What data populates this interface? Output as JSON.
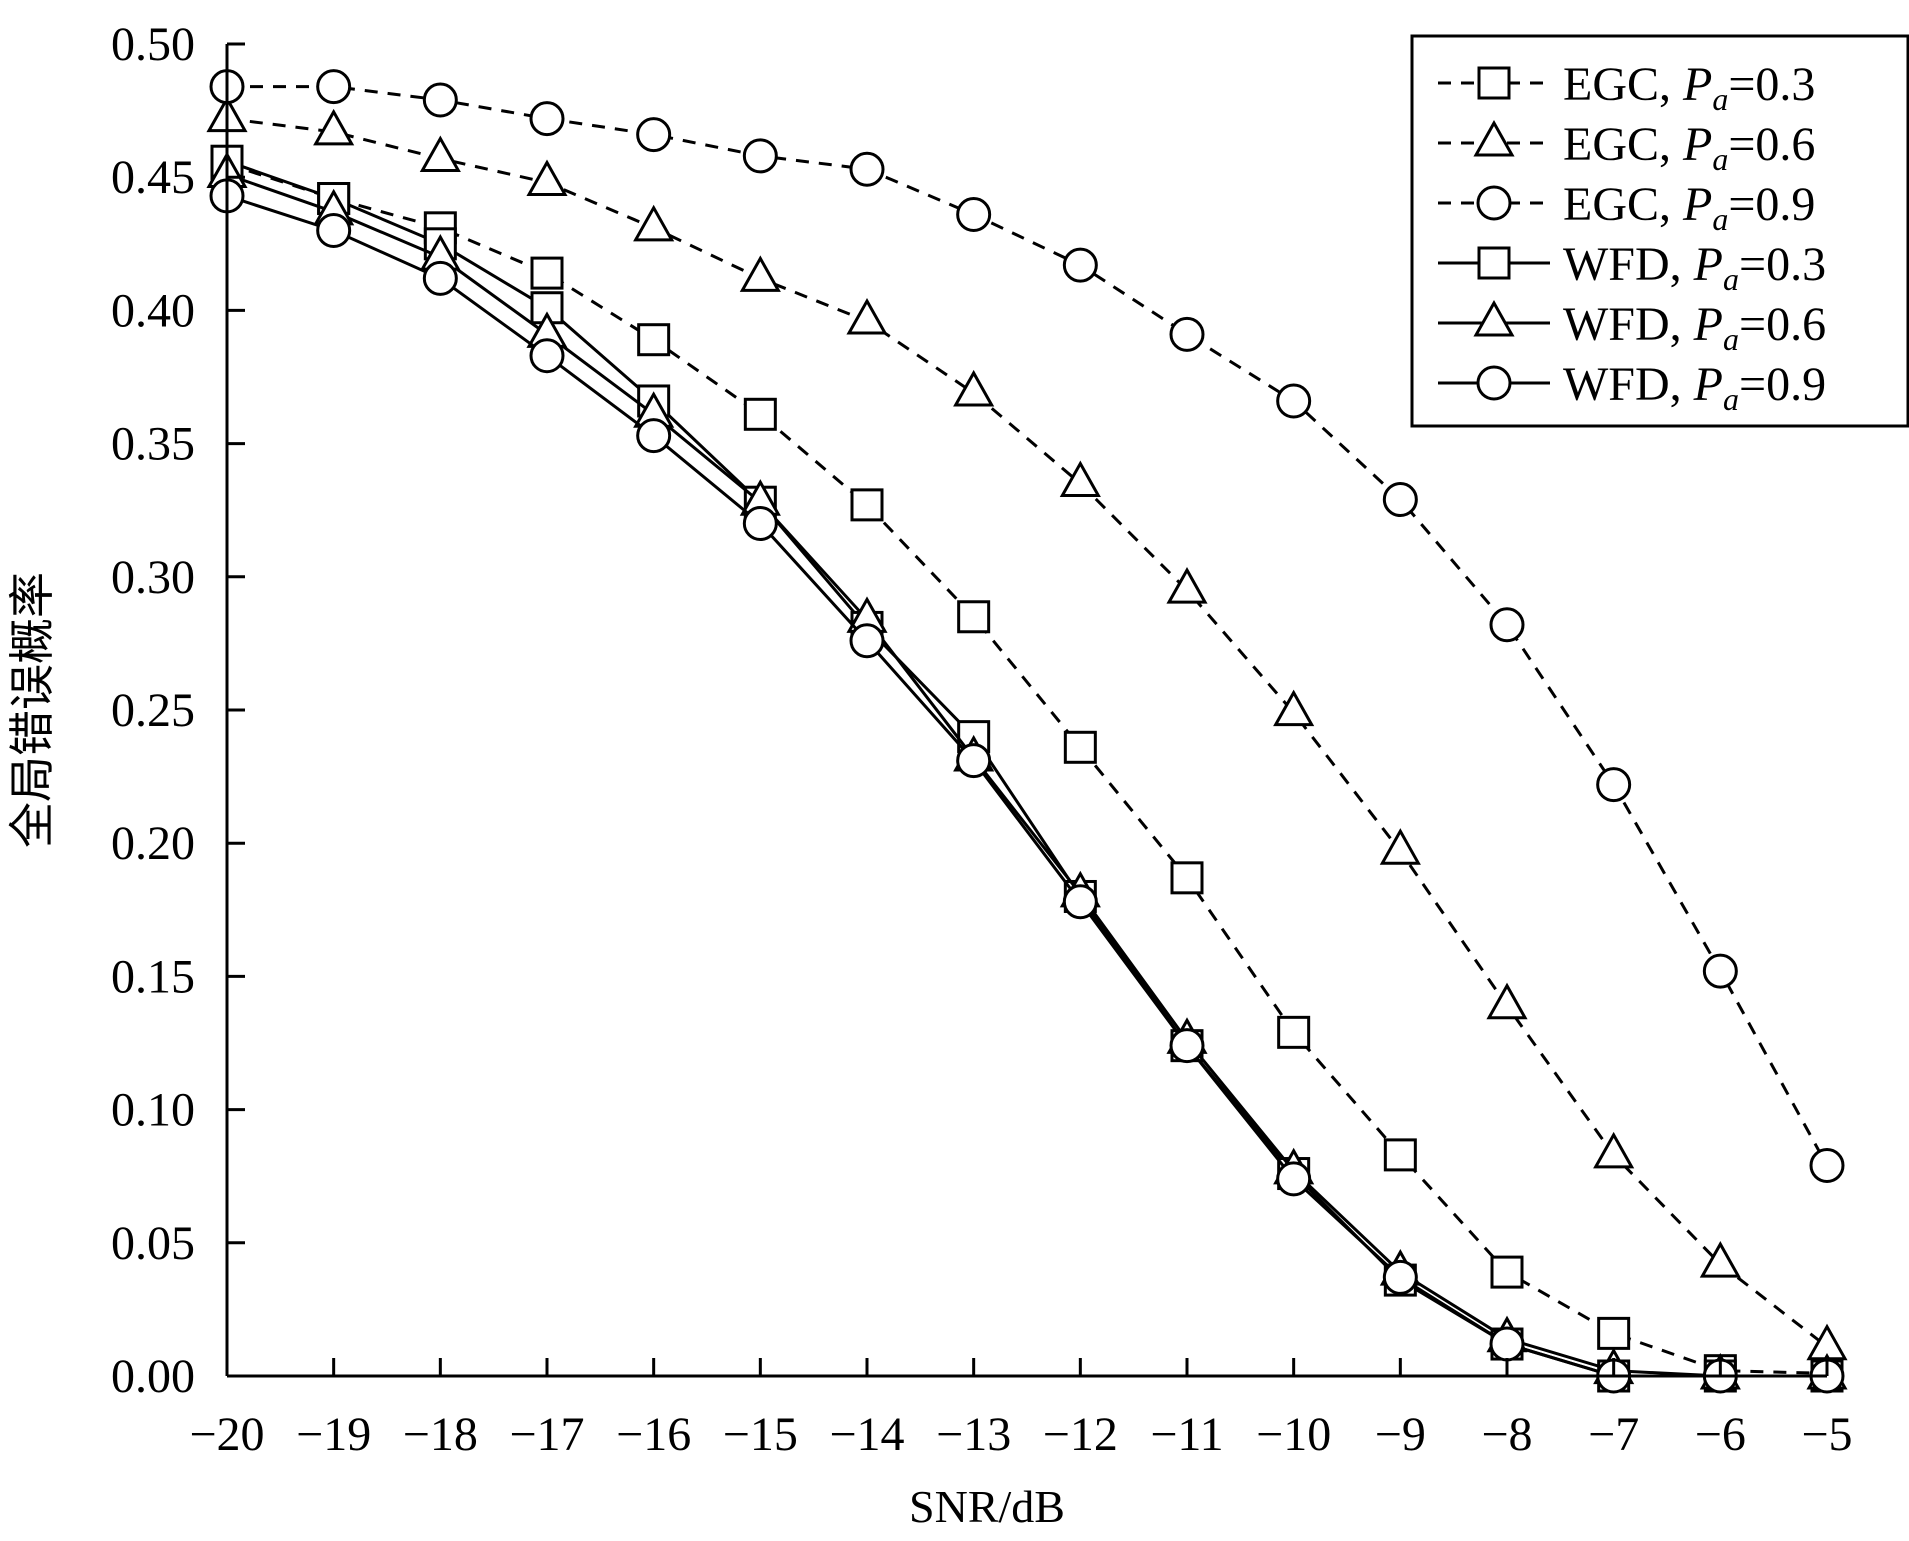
{
  "chart_data": {
    "type": "line",
    "title": "",
    "xlabel": "SNR/dB",
    "ylabel": "全局错误概率",
    "xlim": [
      -20,
      -5
    ],
    "ylim": [
      0,
      0.5
    ],
    "grid": false,
    "legend_position": "top-right",
    "x": [
      -20,
      -19,
      -18,
      -17,
      -16,
      -15,
      -14,
      -13,
      -12,
      -11,
      -10,
      -9,
      -8,
      -7,
      -6,
      -5
    ],
    "x_tick_labels": [
      "−20",
      "−19",
      "−18",
      "−17",
      "−16",
      "−15",
      "−14",
      "−13",
      "−12",
      "−11",
      "−10",
      "−9",
      "−8",
      "−7",
      "−6",
      "−5"
    ],
    "y_ticks": [
      0,
      0.05,
      0.1,
      0.15,
      0.2,
      0.25,
      0.3,
      0.35,
      0.4,
      0.45,
      0.5
    ],
    "y_tick_labels": [
      "0.00",
      "0.05",
      "0.10",
      "0.15",
      "0.20",
      "0.25",
      "0.30",
      "0.35",
      "0.40",
      "0.45",
      "0.50"
    ],
    "series": [
      {
        "name_prefix": "EGC, ",
        "name_sub": "a",
        "name_value": "=0.3",
        "marker": "square",
        "dash": true,
        "values": [
          0.455,
          0.442,
          0.431,
          0.414,
          0.389,
          0.361,
          0.327,
          0.285,
          0.236,
          0.187,
          0.129,
          0.083,
          0.039,
          0.016,
          0.002,
          0.001
        ]
      },
      {
        "name_prefix": "EGC, ",
        "name_sub": "a",
        "name_value": "=0.6",
        "marker": "triangle",
        "dash": true,
        "values": [
          0.472,
          0.467,
          0.457,
          0.448,
          0.431,
          0.412,
          0.396,
          0.369,
          0.335,
          0.295,
          0.249,
          0.197,
          0.139,
          0.083,
          0.042,
          0.011
        ]
      },
      {
        "name_prefix": "EGC, ",
        "name_sub": "a",
        "name_value": "=0.9",
        "marker": "circle",
        "dash": true,
        "values": [
          0.484,
          0.484,
          0.479,
          0.472,
          0.466,
          0.458,
          0.453,
          0.436,
          0.417,
          0.391,
          0.366,
          0.329,
          0.282,
          0.222,
          0.152,
          0.079
        ]
      },
      {
        "name_prefix": "WFD, ",
        "name_sub": "a",
        "name_value": "=0.3",
        "marker": "square",
        "dash": false,
        "values": [
          0.456,
          0.442,
          0.425,
          0.401,
          0.366,
          0.328,
          0.281,
          0.24,
          0.18,
          0.124,
          0.076,
          0.036,
          0.012,
          0.0,
          0.0,
          0.0
        ]
      },
      {
        "name_prefix": "WFD, ",
        "name_sub": "a",
        "name_value": "=0.6",
        "marker": "triangle",
        "dash": false,
        "values": [
          0.451,
          0.437,
          0.42,
          0.391,
          0.361,
          0.328,
          0.284,
          0.232,
          0.181,
          0.126,
          0.077,
          0.039,
          0.014,
          0.002,
          0.0,
          0.0
        ]
      },
      {
        "name_prefix": "WFD, ",
        "name_sub": "a",
        "name_value": "=0.9",
        "marker": "circle",
        "dash": false,
        "values": [
          0.443,
          0.43,
          0.412,
          0.383,
          0.353,
          0.32,
          0.276,
          0.231,
          0.178,
          0.124,
          0.074,
          0.037,
          0.012,
          0.0,
          0.0,
          0.0
        ]
      }
    ]
  }
}
